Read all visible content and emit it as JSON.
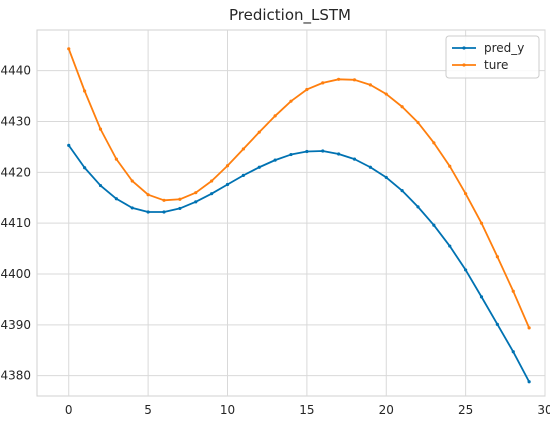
{
  "chart_data": {
    "type": "line",
    "title": "Prediction_LSTM",
    "xlabel": "",
    "ylabel": "",
    "xlim": [
      -2,
      30
    ],
    "ylim": [
      4376,
      4448
    ],
    "xticks": [
      0,
      5,
      10,
      15,
      20,
      25,
      30
    ],
    "yticks": [
      4380,
      4390,
      4400,
      4410,
      4420,
      4430,
      4440
    ],
    "grid": true,
    "legend_position": "top-right",
    "x": [
      0,
      1,
      2,
      3,
      4,
      5,
      6,
      7,
      8,
      9,
      10,
      11,
      12,
      13,
      14,
      15,
      16,
      17,
      18,
      19,
      20,
      21,
      22,
      23,
      24,
      25,
      26,
      27,
      28,
      29
    ],
    "series": [
      {
        "name": "pred_y",
        "color": "#0072b2",
        "marker": "point",
        "values": [
          4425.3,
          4420.9,
          4417.4,
          4414.8,
          4413.0,
          4412.2,
          4412.2,
          4412.9,
          4414.2,
          4415.8,
          4417.6,
          4419.4,
          4421.0,
          4422.4,
          4423.5,
          4424.1,
          4424.2,
          4423.6,
          4422.6,
          4421.0,
          4419.0,
          4416.4,
          4413.2,
          4409.6,
          4405.5,
          4400.8,
          4395.5,
          4390.1,
          4384.7,
          4378.8
        ]
      },
      {
        "name": "ture",
        "color": "#ff7f0e",
        "marker": "point",
        "values": [
          4444.3,
          4436.0,
          4428.5,
          4422.6,
          4418.3,
          4415.6,
          4414.5,
          4414.7,
          4416.0,
          4418.3,
          4421.3,
          4424.6,
          4427.9,
          4431.1,
          4434.0,
          4436.3,
          4437.6,
          4438.3,
          4438.2,
          4437.2,
          4435.4,
          4432.9,
          4429.8,
          4425.8,
          4421.2,
          4415.8,
          4410.0,
          4403.4,
          4396.6,
          4389.4
        ]
      }
    ]
  }
}
